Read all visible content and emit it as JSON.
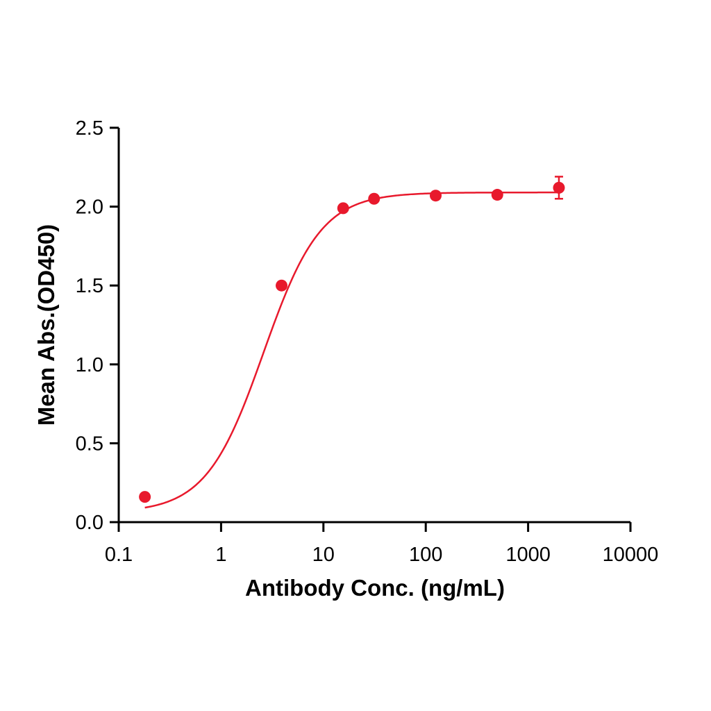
{
  "chart_data": {
    "type": "scatter",
    "title": "",
    "xlabel": "Antibody Conc. (ng/mL)",
    "ylabel": "Mean Abs.(OD450)",
    "xscale": "log",
    "xlim": [
      0.1,
      10000
    ],
    "ylim": [
      0,
      2.5
    ],
    "x_ticks": [
      "0.1",
      "1",
      "10",
      "100",
      "1000",
      "10000"
    ],
    "y_ticks": [
      "0.0",
      "0.5",
      "1.0",
      "1.5",
      "2.0",
      "2.5"
    ],
    "grid": false,
    "legend": null,
    "series": [
      {
        "name": "Mean Abs.",
        "color": "#e8192c",
        "x": [
          0.18,
          3.9,
          15.6,
          31.25,
          125,
          500,
          2000
        ],
        "y": [
          0.16,
          1.5,
          1.99,
          2.05,
          2.07,
          2.075,
          2.12
        ],
        "error": [
          0,
          0,
          0,
          0,
          0,
          0,
          0.07
        ],
        "fit": "4-parameter logistic curve",
        "fit_params": {
          "bottom": 0.06,
          "top": 2.09,
          "ec50": 2.6,
          "hill": 1.55
        }
      }
    ]
  }
}
